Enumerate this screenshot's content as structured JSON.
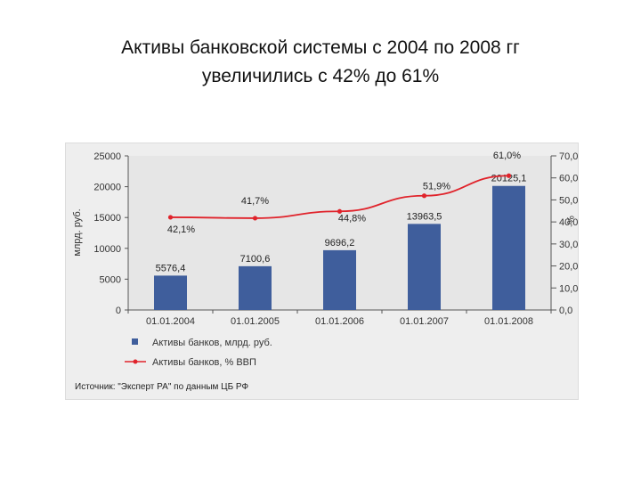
{
  "title": {
    "line1": "Активы банковской системы с 2004 по 2008 гг",
    "line2": "увеличились с 42% до 61%"
  },
  "chart_data": {
    "type": "bar",
    "categories": [
      "01.01.2004",
      "01.01.2005",
      "01.01.2006",
      "01.01.2007",
      "01.01.2008"
    ],
    "series": [
      {
        "name": "Активы банков, млрд. руб.",
        "type": "bar",
        "axis": "left",
        "color": "#3f5e9c",
        "values": [
          5576.4,
          7100.6,
          9696.2,
          13963.5,
          20125.1
        ],
        "labels": [
          "5576,4",
          "7100,6",
          "9696,2",
          "13963,5",
          "20125,1"
        ]
      },
      {
        "name": "Активы банков, % ВВП",
        "type": "line",
        "axis": "right",
        "color": "#e0232b",
        "values": [
          42.1,
          41.7,
          44.8,
          51.9,
          61.0
        ],
        "labels": [
          "42,1%",
          "41,7%",
          "44,8%",
          "51,9%",
          "61,0%"
        ]
      }
    ],
    "ylabel": "млрд. руб.",
    "ylim": [
      0,
      25000
    ],
    "yticks": [
      "0",
      "5000",
      "10000",
      "15000",
      "20000",
      "25000"
    ],
    "y2label": "%",
    "y2lim": [
      0,
      70
    ],
    "y2ticks": [
      "0,0",
      "10,0",
      "20,0",
      "30,0",
      "40,0",
      "50,0",
      "60,0",
      "70,0"
    ],
    "source": "Источник: \"Эксперт РА\" по данным ЦБ РФ",
    "legend_position": "bottom-left",
    "grid": false
  }
}
